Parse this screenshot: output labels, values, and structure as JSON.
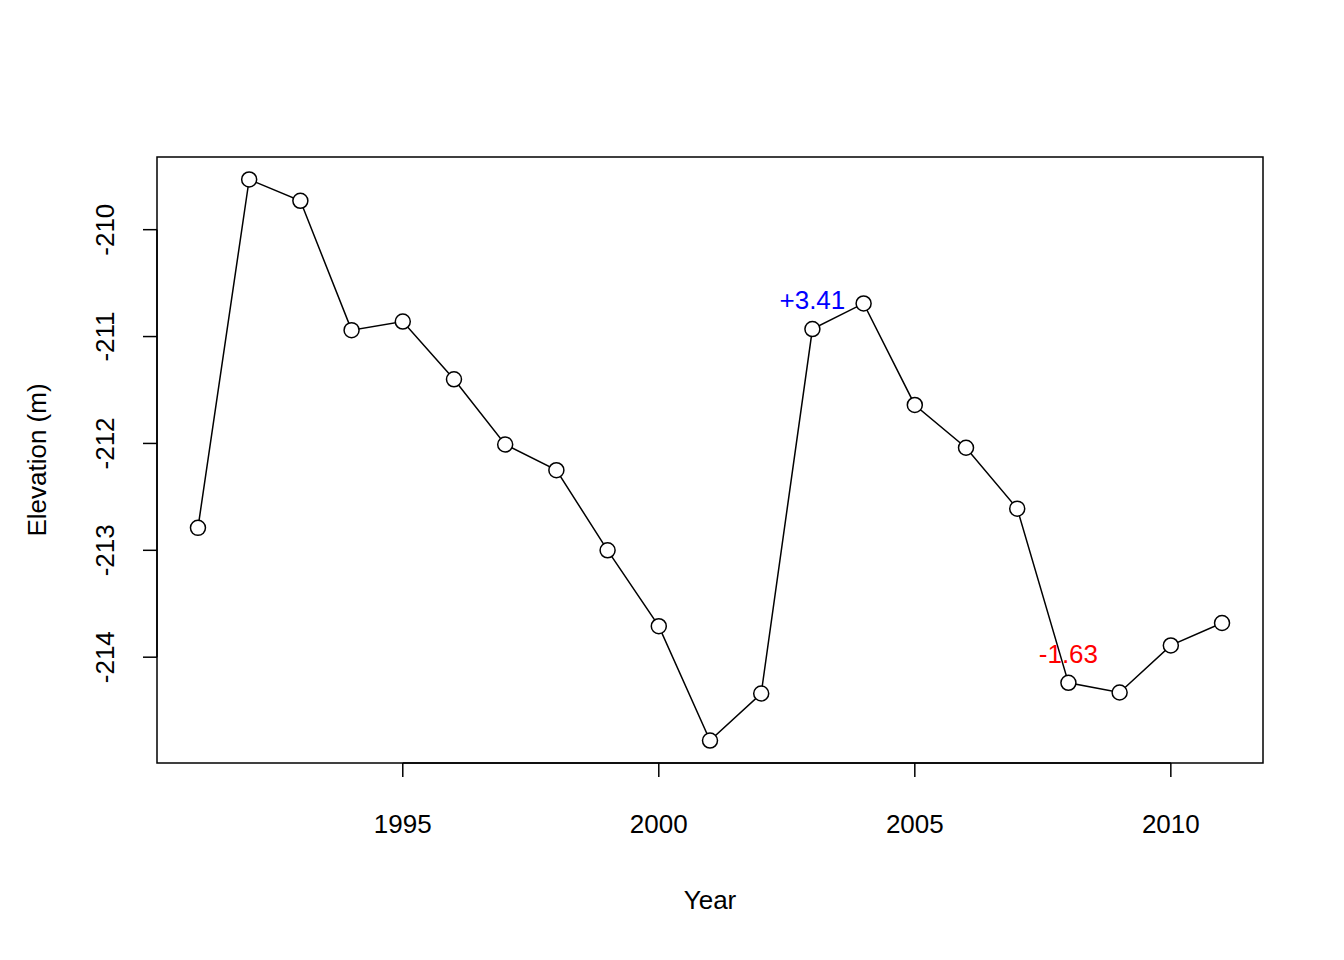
{
  "chart_data": {
    "type": "line",
    "marker": "open-circle",
    "color": "#000000",
    "x_label": "Year",
    "y_label": "Elevation (m)",
    "x": [
      1991,
      1992,
      1993,
      1994,
      1995,
      1996,
      1997,
      1998,
      1999,
      2000,
      2001,
      2002,
      2003,
      2004,
      2005,
      2006,
      2007,
      2008,
      2009,
      2010,
      2011
    ],
    "values": [
      -212.79,
      -209.53,
      -209.73,
      -210.94,
      -210.86,
      -211.4,
      -212.01,
      -212.25,
      -213.0,
      -213.71,
      -214.78,
      -214.34,
      -210.93,
      -210.69,
      -211.64,
      -212.04,
      -212.61,
      -214.24,
      -214.33,
      -213.89,
      -213.68
    ],
    "xlim": [
      1990.2,
      2011.8
    ],
    "ylim": [
      -214.99,
      -209.32
    ],
    "xticks": [
      1995,
      2000,
      2005,
      2010
    ],
    "yticks": [
      -214,
      -213,
      -212,
      -211,
      -210
    ],
    "annotations": [
      {
        "x": 2003,
        "label": "+3.41",
        "color": "#0000ff"
      },
      {
        "x": 2008,
        "label": "-1.63",
        "color": "#ff0000"
      }
    ]
  }
}
